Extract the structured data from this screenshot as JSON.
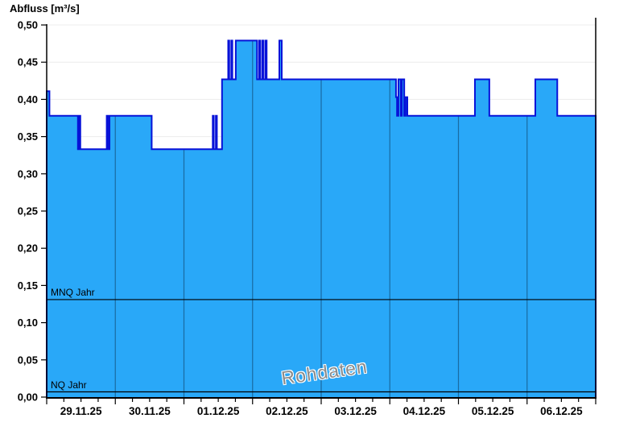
{
  "title": "Abfluss [m³/s]",
  "watermark": "Rohdaten",
  "chart_data": {
    "type": "area",
    "title": "Abfluss [m³/s]",
    "ylabel": "Abfluss [m³/s]",
    "ylim": [
      0,
      0.5
    ],
    "y_tick_step": 0.05,
    "y_tick_labels": [
      "0,00",
      "0,05",
      "0,10",
      "0,15",
      "0,20",
      "0,25",
      "0,30",
      "0,35",
      "0,40",
      "0,45",
      "0,50"
    ],
    "x_axis": {
      "day_labels": [
        "29.11.25",
        "30.11.25",
        "01.12.25",
        "02.12.25",
        "03.12.25",
        "04.12.25",
        "05.12.25",
        "06.12.25"
      ],
      "days_total": 8,
      "minor_tick_interval_days": 0.25,
      "grid": "vertical-day-lines-inside-area"
    },
    "series": [
      {
        "name": "Abfluss Rohdaten",
        "unit": "m³/s",
        "step_points_day_value": [
          [
            0.0,
            0.411
          ],
          [
            0.04,
            0.378
          ],
          [
            0.455,
            0.333
          ],
          [
            0.47,
            0.378
          ],
          [
            0.49,
            0.333
          ],
          [
            0.875,
            0.378
          ],
          [
            0.895,
            0.333
          ],
          [
            0.915,
            0.378
          ],
          [
            1.53,
            0.333
          ],
          [
            2.42,
            0.378
          ],
          [
            2.435,
            0.333
          ],
          [
            2.465,
            0.378
          ],
          [
            2.48,
            0.333
          ],
          [
            2.555,
            0.427
          ],
          [
            2.645,
            0.479
          ],
          [
            2.66,
            0.427
          ],
          [
            2.69,
            0.479
          ],
          [
            2.705,
            0.427
          ],
          [
            2.755,
            0.479
          ],
          [
            3.065,
            0.427
          ],
          [
            3.095,
            0.479
          ],
          [
            3.11,
            0.427
          ],
          [
            3.14,
            0.479
          ],
          [
            3.155,
            0.427
          ],
          [
            3.185,
            0.479
          ],
          [
            3.205,
            0.427
          ],
          [
            3.39,
            0.479
          ],
          [
            3.425,
            0.427
          ],
          [
            5.09,
            0.403
          ],
          [
            5.105,
            0.378
          ],
          [
            5.125,
            0.427
          ],
          [
            5.16,
            0.378
          ],
          [
            5.175,
            0.427
          ],
          [
            5.21,
            0.378
          ],
          [
            5.23,
            0.403
          ],
          [
            5.255,
            0.378
          ],
          [
            6.24,
            0.427
          ],
          [
            6.45,
            0.378
          ],
          [
            7.12,
            0.427
          ],
          [
            7.44,
            0.378
          ]
        ],
        "end_day": 8.0
      }
    ],
    "reference_lines": [
      {
        "label": "MNQ Jahr",
        "value": 0.131
      },
      {
        "label": "NQ Jahr",
        "value": 0.007
      }
    ],
    "legend_position": "none",
    "colors": {
      "fill": "#29a8f8",
      "line": "#0712d8",
      "h_grid": "#ececec",
      "day_grid_over_area": "rgba(10,45,75,0.5)",
      "axis": "#000000",
      "ref_line": "#000000",
      "watermark": "#8a8a8a",
      "text": "#000000"
    }
  }
}
